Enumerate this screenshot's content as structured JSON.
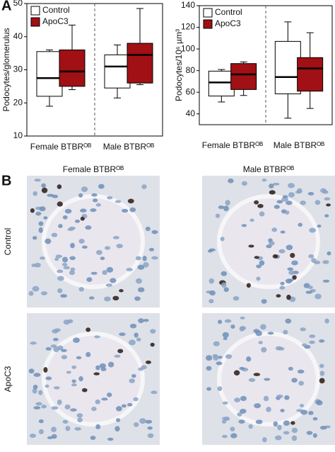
{
  "panel_a_label": "A",
  "chart_data": [
    {
      "type": "box",
      "ylabel": "Podocytes/glomerulus",
      "categories": [
        "Female BTBRᴼᴮ",
        "Male BTBRᴼᴮ"
      ],
      "series": [
        {
          "name": "Control",
          "color": "#ffffff",
          "values": [
            {
              "min": 19,
              "q1": 22,
              "median": 27.5,
              "q3": 35.5,
              "max": 36
            },
            {
              "min": 21.5,
              "q1": 24.5,
              "median": 31,
              "q3": 34.5,
              "max": 37.5
            }
          ]
        },
        {
          "name": "ApoC3",
          "color": "#a01014",
          "values": [
            {
              "min": 24,
              "q1": 25,
              "median": 29.5,
              "q3": 36,
              "max": 43.5
            },
            {
              "min": 25.5,
              "q1": 26,
              "median": 34.5,
              "q3": 38,
              "max": 48.5
            }
          ]
        }
      ],
      "ylim": [
        10,
        50
      ],
      "yticks": [
        10,
        20,
        30,
        40,
        50
      ],
      "legend": "top-left"
    },
    {
      "type": "box",
      "ylabel": "Podocytes/10⁶ µm³",
      "categories": [
        "Female BTBRᴼᴮ",
        "Male BTBRᴼᴮ"
      ],
      "series": [
        {
          "name": "Control",
          "color": "#ffffff",
          "values": [
            {
              "min": 51,
              "q1": 56.5,
              "median": 69,
              "q3": 79.5,
              "max": 81
            },
            {
              "min": 36,
              "q1": 58.5,
              "median": 74,
              "q3": 107,
              "max": 125
            }
          ]
        },
        {
          "name": "ApoC3",
          "color": "#a01014",
          "values": [
            {
              "min": 57,
              "q1": 62.5,
              "median": 76.5,
              "q3": 86.5,
              "max": 88
            },
            {
              "min": 45,
              "q1": 61,
              "median": 82,
              "q3": 92,
              "max": 115
            }
          ]
        }
      ],
      "ylim": [
        30,
        140
      ],
      "yticks": [
        40,
        60,
        80,
        100,
        120,
        140
      ],
      "legend": "top-left"
    }
  ],
  "panel_b": {
    "label": "B",
    "columns": [
      "Female BTBRᴼᴮ",
      "Male BTBRᴼᴮ"
    ],
    "rows": [
      "Control",
      "ApoC3"
    ]
  }
}
